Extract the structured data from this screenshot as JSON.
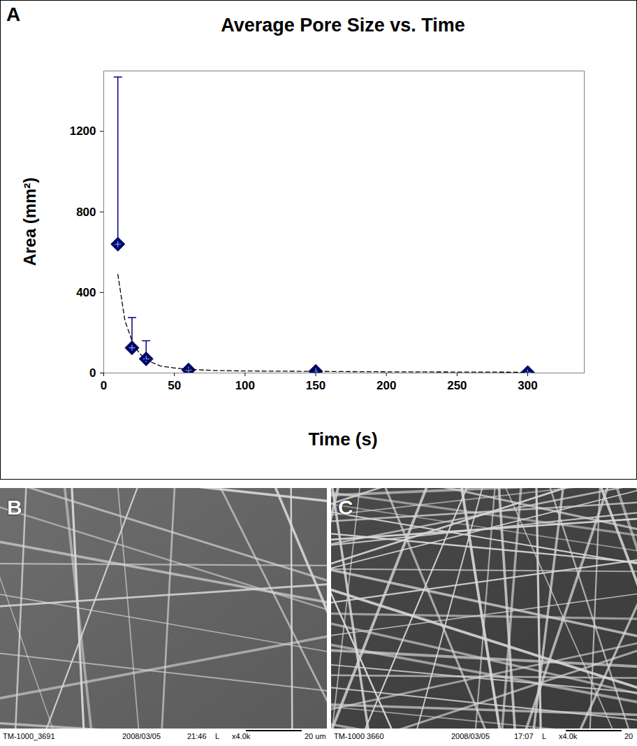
{
  "chart_data": {
    "type": "scatter",
    "title": "Average Pore Size vs. Time",
    "x_label": "Time (s)",
    "y_label": "Area (mm²)",
    "xlim": [
      0,
      340
    ],
    "xticks": [
      0,
      50,
      100,
      150,
      200,
      250,
      300
    ],
    "ylim": [
      0,
      1500
    ],
    "yticks": [
      0,
      400,
      800,
      1200
    ],
    "grid": false,
    "series": [
      {
        "type": "scatter",
        "x": [
          10,
          20,
          30,
          60,
          150,
          300
        ],
        "values": [
          640,
          125,
          70,
          15,
          8,
          2
        ],
        "error_upper": [
          830,
          150,
          90,
          null,
          null,
          null
        ],
        "color": "#000080",
        "marker": "diamond"
      },
      {
        "type": "line",
        "x": [
          10,
          15,
          20,
          25,
          30,
          40,
          50,
          60,
          80,
          100,
          150,
          200,
          250,
          300
        ],
        "values": [
          490,
          260,
          160,
          100,
          65,
          35,
          25,
          18,
          12,
          10,
          8,
          6,
          5,
          4
        ],
        "color": "#000000",
        "line_style": "dashed"
      }
    ]
  },
  "panels": [
    {
      "label": "A"
    },
    {
      "label": "B",
      "caption": [
        "TM-1000_3691",
        "2008/03/05",
        "21:46",
        "L",
        "x4.0k",
        "20 um"
      ]
    },
    {
      "label": "C",
      "caption": [
        "TM-1000  3660",
        "2008/03/05",
        "17:07",
        "L",
        "x4.0k",
        "20"
      ]
    }
  ]
}
